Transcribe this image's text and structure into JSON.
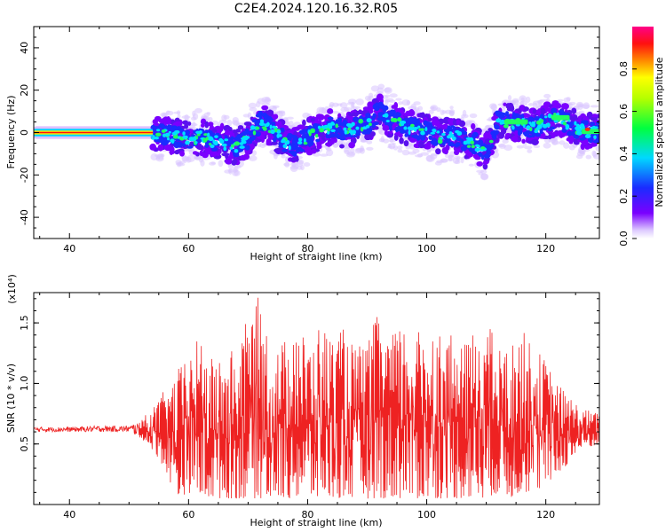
{
  "title": "C2E4.2024.120.16.32.R05",
  "colors": {
    "snr_line": "#ee2222",
    "background": "#ffffff"
  },
  "chart_data": [
    {
      "type": "heatmap",
      "title": "",
      "xlabel": "Height of straight line (km)",
      "ylabel": "Frequency (Hz)",
      "xlim": [
        34,
        129
      ],
      "ylim": [
        -50,
        50
      ],
      "xticks": [
        40,
        60,
        80,
        100,
        120
      ],
      "yticks": [
        -40,
        -20,
        0,
        20,
        40
      ],
      "grid": false,
      "colorbar": {
        "label": "Normalized spectral amplitude",
        "range": [
          0,
          1
        ],
        "ticks": [
          0.0,
          0.2,
          0.4,
          0.6,
          0.8
        ],
        "colormap": "rainbow (white-violet-blue-cyan-green-yellow-orange-red-pink)"
      },
      "ridge": {
        "description": "frequency of the spectral ridge (Hz) vs height (km); stable near 0 Hz below ~54 km, then fluctuating",
        "x": [
          34,
          40,
          45,
          50,
          54,
          56,
          58,
          60,
          62,
          64,
          66,
          68,
          70,
          72,
          74,
          76,
          78,
          80,
          82,
          84,
          86,
          88,
          90,
          92,
          94,
          96,
          98,
          100,
          102,
          104,
          106,
          108,
          110,
          112,
          114,
          116,
          118,
          120,
          122,
          124,
          126,
          129
        ],
        "y": [
          0,
          0,
          0,
          0,
          0,
          -1,
          -2,
          -3,
          -2,
          -4,
          -5,
          -7,
          -3,
          5,
          2,
          -4,
          -6,
          -2,
          0,
          3,
          1,
          2,
          4,
          10,
          6,
          3,
          2,
          1,
          -2,
          -1,
          -3,
          -5,
          -9,
          6,
          5,
          4,
          2,
          5,
          7,
          4,
          1,
          0
        ]
      }
    },
    {
      "type": "line",
      "title": "",
      "xlabel": "Height of straight line (km)",
      "ylabel": "SNR (10 * v/v)",
      "multiplier": "(x10⁴)",
      "xlim": [
        34,
        129
      ],
      "ylim": [
        0,
        1.75
      ],
      "xticks": [
        40,
        60,
        80,
        100,
        120
      ],
      "yticks": [
        0.5,
        1.0,
        1.5
      ],
      "ytick_labels": [
        "0.5",
        "1.0",
        "1.5"
      ],
      "grid": false,
      "series": [
        {
          "color": "#ee2222",
          "envelope": {
            "description": "SNR (x10^4) vs height: flat ~0.62 below ~52 km, then strongly oscillating between min and max",
            "x": [
              34,
              40,
              45,
              50,
              52,
              54,
              56,
              58,
              60,
              62,
              64,
              66,
              68,
              70,
              72,
              74,
              76,
              78,
              80,
              82,
              84,
              86,
              88,
              90,
              92,
              94,
              96,
              98,
              100,
              102,
              104,
              106,
              108,
              110,
              112,
              114,
              116,
              118,
              120,
              122,
              124,
              126,
              129
            ],
            "min": [
              0.6,
              0.6,
              0.6,
              0.6,
              0.55,
              0.45,
              0.3,
              0.05,
              0.1,
              0.05,
              0.05,
              0.05,
              0.05,
              0.05,
              0.05,
              0.05,
              0.05,
              0.05,
              0.05,
              0.05,
              0.05,
              0.05,
              0.05,
              0.05,
              0.05,
              0.05,
              0.05,
              0.05,
              0.05,
              0.05,
              0.05,
              0.05,
              0.05,
              0.05,
              0.1,
              0.05,
              0.1,
              0.1,
              0.15,
              0.25,
              0.35,
              0.45,
              0.5
            ],
            "max": [
              0.64,
              0.64,
              0.65,
              0.65,
              0.7,
              0.8,
              0.95,
              1.1,
              1.25,
              1.4,
              1.2,
              1.25,
              1.3,
              1.55,
              1.75,
              1.25,
              1.35,
              1.6,
              1.3,
              1.5,
              1.4,
              1.45,
              1.3,
              1.35,
              1.6,
              1.4,
              1.5,
              1.4,
              1.5,
              1.45,
              1.4,
              1.3,
              1.45,
              1.55,
              1.3,
              1.3,
              1.45,
              1.3,
              1.2,
              1.0,
              0.9,
              0.8,
              0.75
            ]
          }
        }
      ]
    }
  ]
}
